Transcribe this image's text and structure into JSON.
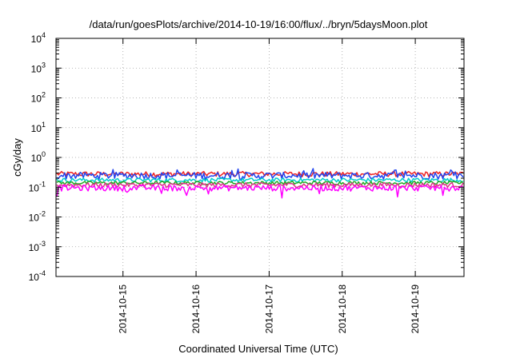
{
  "chart_data": {
    "type": "line",
    "title": "/data/run/goesPlots/archive/2014-10-19/16:00/flux/../bryn/5daysMoon.plot",
    "xlabel": "Coordinated Universal Time (UTC)",
    "ylabel": "cGy/day",
    "y_scale": "log",
    "ylim": [
      0.0001,
      10000
    ],
    "y_ticks": [
      {
        "base": "10",
        "exp": "4"
      },
      {
        "base": "10",
        "exp": "3"
      },
      {
        "base": "10",
        "exp": "2"
      },
      {
        "base": "10",
        "exp": "1"
      },
      {
        "base": "10",
        "exp": "0"
      },
      {
        "base": "10",
        "exp": "-1"
      },
      {
        "base": "10",
        "exp": "-2"
      },
      {
        "base": "10",
        "exp": "-3"
      },
      {
        "base": "10",
        "exp": "-4"
      }
    ],
    "xlim": [
      "2014-10-14T02:00",
      "2014-10-19T16:00"
    ],
    "x_ticks": [
      "2014-10-15",
      "2014-10-16",
      "2014-10-17",
      "2014-10-18",
      "2014-10-19"
    ],
    "grid": true,
    "series": [
      {
        "color": "#ee2222",
        "base_value": 0.28,
        "noise": 0.09
      },
      {
        "color": "#2244ee",
        "base_value": 0.25,
        "noise": 0.12
      },
      {
        "color": "#00cccc",
        "base_value": 0.175,
        "noise": 0.07
      },
      {
        "color": "#22aa22",
        "base_value": 0.14,
        "noise": 0.06
      },
      {
        "color": "#dd3388",
        "base_value": 0.12,
        "noise": 0.08
      },
      {
        "color": "#ff00ff",
        "base_value": 0.095,
        "noise": 0.1
      }
    ]
  }
}
